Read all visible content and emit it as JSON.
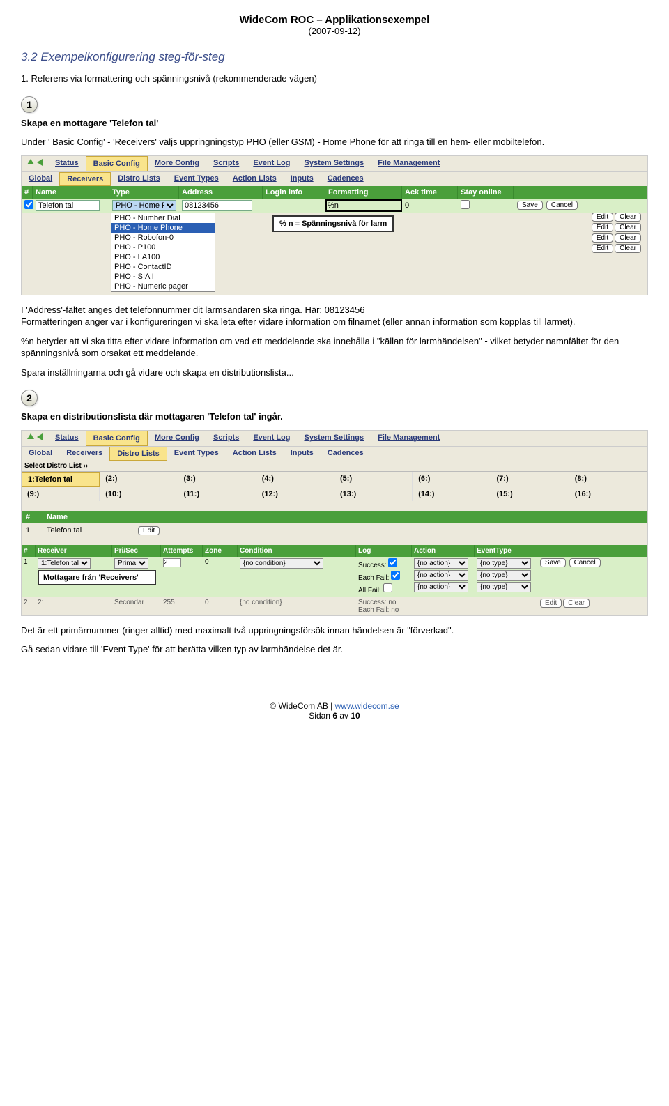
{
  "doc": {
    "title": "WideCom ROC – Applikationsexempel",
    "date": "(2007-09-12)"
  },
  "section_heading": "3.2 Exempelkonfigurering steg-för-steg",
  "step1": {
    "num": "1",
    "title_line": "1. Referens via formattering och spänningsnivå (rekommenderade vägen)",
    "sub_heading": "Skapa en mottagare 'Telefon tal'",
    "sub_text": "Under ' Basic Config' - 'Receivers' väljs uppringningstyp PHO (eller GSM) - Home Phone för att ringa till en hem- eller mobiltelefon."
  },
  "tabs1": [
    "Status",
    "Basic Config",
    "More Config",
    "Scripts",
    "Event Log",
    "System Settings",
    "File Management"
  ],
  "tabs1_sel": "Basic Config",
  "tabs2": [
    "Global",
    "Receivers",
    "Distro Lists",
    "Event Types",
    "Action Lists",
    "Inputs",
    "Cadences"
  ],
  "tabs2_sel": "Receivers",
  "recv_hdr": [
    "#",
    "Name",
    "Type",
    "Address",
    "Login info",
    "Formatting",
    "Ack time",
    "Stay online"
  ],
  "recv_row1": {
    "name": "Telefon tal",
    "type_sel": "PHO - Home P",
    "address": "08123456",
    "formatting": "%n",
    "ack": "0",
    "btn_save": "Save",
    "btn_cancel": "Cancel"
  },
  "type_dropdown": [
    "PHO - Number Dial",
    "PHO - Home Phone",
    "PHO - Robofon-0",
    "PHO - P100",
    "PHO - LA100",
    "PHO - ContactID",
    "PHO - SIA I",
    "PHO - Numeric pager"
  ],
  "type_dropdown_sel": "PHO - Home Phone",
  "annotation1": "% n = Spänningsnivå för larm",
  "ghost_buttons": {
    "edit": "Edit",
    "clear": "Clear"
  },
  "para_block1": [
    "I 'Address'-fältet anges det telefonnummer dit larmsändaren ska ringa. Här: 08123456",
    "Formatteringen anger var i konfigureringen vi ska leta efter vidare information om filnamet (eller annan information som kopplas till larmet).",
    "%n betyder att vi ska titta efter vidare information om vad ett meddelande ska innehålla i \"källan för larmhändelsen\" - vilket betyder namnfältet för den spänningsnivå som orsakat ett meddelande.",
    "Spara inställningarna och gå vidare och skapa en distributionslista..."
  ],
  "step2": {
    "num": "2",
    "heading": "Skapa en distributionslista där mottagaren 'Telefon tal' ingår."
  },
  "distro_label": "Select Distro List ››",
  "distro_row1": [
    "1:Telefon tal",
    "(2:)",
    "(3:)",
    "(4:)",
    "(5:)",
    "(6:)",
    "(7:)",
    "(8:)"
  ],
  "distro_row2": [
    "(9:)",
    "(10:)",
    "(11:)",
    "(12:)",
    "(13:)",
    "(14:)",
    "(15:)",
    "(16:)"
  ],
  "name_hdr": [
    "#",
    "Name"
  ],
  "name_row": {
    "num": "1",
    "name": "Telefon tal",
    "btn": "Edit"
  },
  "recv2_hdr": [
    "#",
    "Receiver",
    "Pri/Sec",
    "Attempts",
    "Zone",
    "Condition",
    "Log",
    "Action",
    "EventType"
  ],
  "recv2_row1": {
    "num": "1",
    "receiver": "1:Telefon tal",
    "prisec": "Prima",
    "attempts": "2",
    "zone": "0",
    "condition": "{no condition}",
    "log": [
      "Success:",
      "Each Fail:",
      "All Fail:"
    ],
    "action": "{no action}",
    "etype": "{no type}",
    "btn_save": "Save",
    "btn_cancel": "Cancel"
  },
  "recv_callout": "Mottagare från 'Receivers'",
  "recv2_row2": {
    "num": "2",
    "receiver": "2:",
    "prisec": "Secondar",
    "attempts": "255",
    "zone": "0",
    "condition": "{no condition}",
    "log1": "Success:  no",
    "log2": "Each Fail:  no",
    "btn_edit": "Edit",
    "btn_clear": "Clear"
  },
  "para_block2": [
    "Det är ett primärnummer (ringer alltid) med maximalt två uppringningsförsök innan händelsen är \"förverkad\".",
    "Gå sedan vidare till 'Event Type' för att berätta vilken typ av larmhändelse det är."
  ],
  "footer": {
    "line1a": "© WideCom AB | ",
    "link": "www.widecom.se",
    "line2a": "Sidan ",
    "page": "6",
    "line2b": " av ",
    "total": "10"
  }
}
